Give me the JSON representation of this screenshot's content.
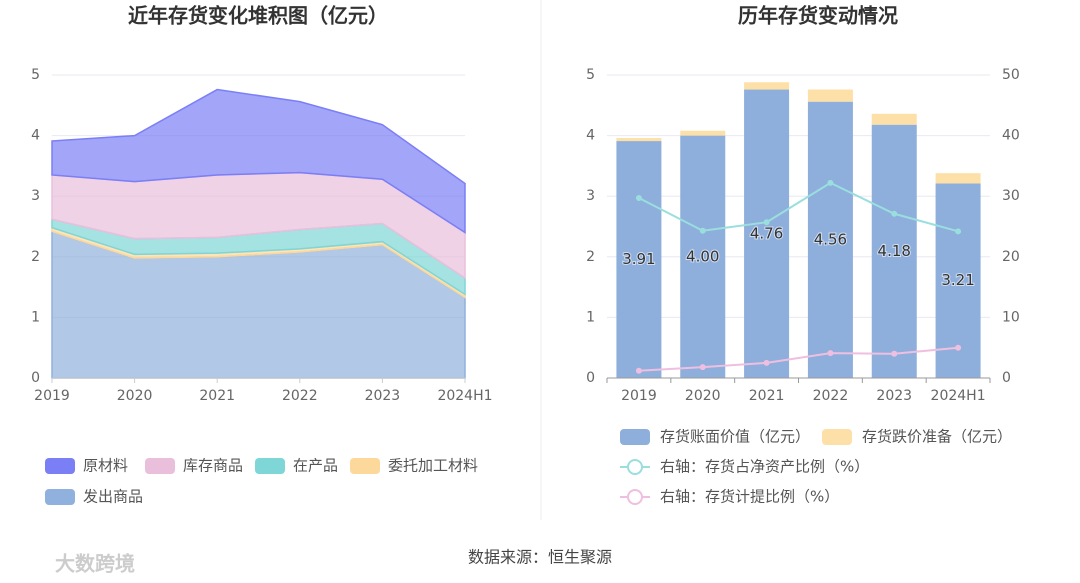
{
  "chart_data": [
    {
      "type": "area",
      "title": "近年存货变化堆积图（亿元）",
      "categories": [
        "2019",
        "2020",
        "2021",
        "2022",
        "2023",
        "2024H1"
      ],
      "series": [
        {
          "name": "原材料",
          "color": "#7b7ff5",
          "values": [
            0.56,
            0.76,
            1.41,
            1.17,
            0.9,
            0.81
          ]
        },
        {
          "name": "库存商品",
          "color": "#eabfdc",
          "values": [
            0.73,
            0.94,
            1.03,
            0.94,
            0.73,
            0.75
          ]
        },
        {
          "name": "在产品",
          "color": "#7fd6d6",
          "values": [
            0.14,
            0.26,
            0.26,
            0.32,
            0.3,
            0.27
          ]
        },
        {
          "name": "委托加工材料",
          "color": "#fdd89b",
          "values": [
            0.06,
            0.06,
            0.06,
            0.05,
            0.05,
            0.05
          ]
        },
        {
          "name": "发出商品",
          "color": "#90b0dd",
          "values": [
            2.42,
            1.98,
            2.0,
            2.08,
            2.2,
            1.33
          ]
        }
      ],
      "ylim": [
        0,
        5
      ],
      "yticks": [
        0,
        1,
        2,
        3,
        4,
        5
      ],
      "grid": true
    },
    {
      "type": "bar",
      "title": "历年存货变动情况",
      "categories": [
        "2019",
        "2020",
        "2021",
        "2022",
        "2023",
        "2024H1"
      ],
      "series": [
        {
          "name": "存货账面价值（亿元）",
          "color": "#8eaedc",
          "values": [
            3.91,
            4,
            4.76,
            4.56,
            4.18,
            3.21
          ],
          "value_labels": [
            "3.91",
            "4.00",
            "4.76",
            "4.56",
            "4.18",
            "3.21"
          ]
        },
        {
          "name": "存货跌价准备（亿元）",
          "color": "#fde0a8",
          "values": [
            0.05,
            0.08,
            0.12,
            0.2,
            0.18,
            0.17
          ]
        },
        {
          "name": "右轴：存货占净资产比例（%）",
          "color": "#9adede",
          "axis": "y2",
          "values": [
            29.7,
            24.3,
            25.7,
            32.2,
            27.1,
            24.2
          ]
        },
        {
          "name": "右轴：存货计提比例（%）",
          "color": "#efbfe0",
          "axis": "y2",
          "values": [
            1.2,
            1.8,
            2.5,
            4.1,
            4.0,
            5.0
          ]
        }
      ],
      "ylim": [
        0,
        5
      ],
      "yticks": [
        0,
        1,
        2,
        3,
        4,
        5
      ],
      "y2lim": [
        0,
        50
      ],
      "y2ticks": [
        0,
        10,
        20,
        30,
        40,
        50
      ],
      "grid": true
    }
  ],
  "source": "数据来源：恒生聚源",
  "watermark": "大数跨境"
}
